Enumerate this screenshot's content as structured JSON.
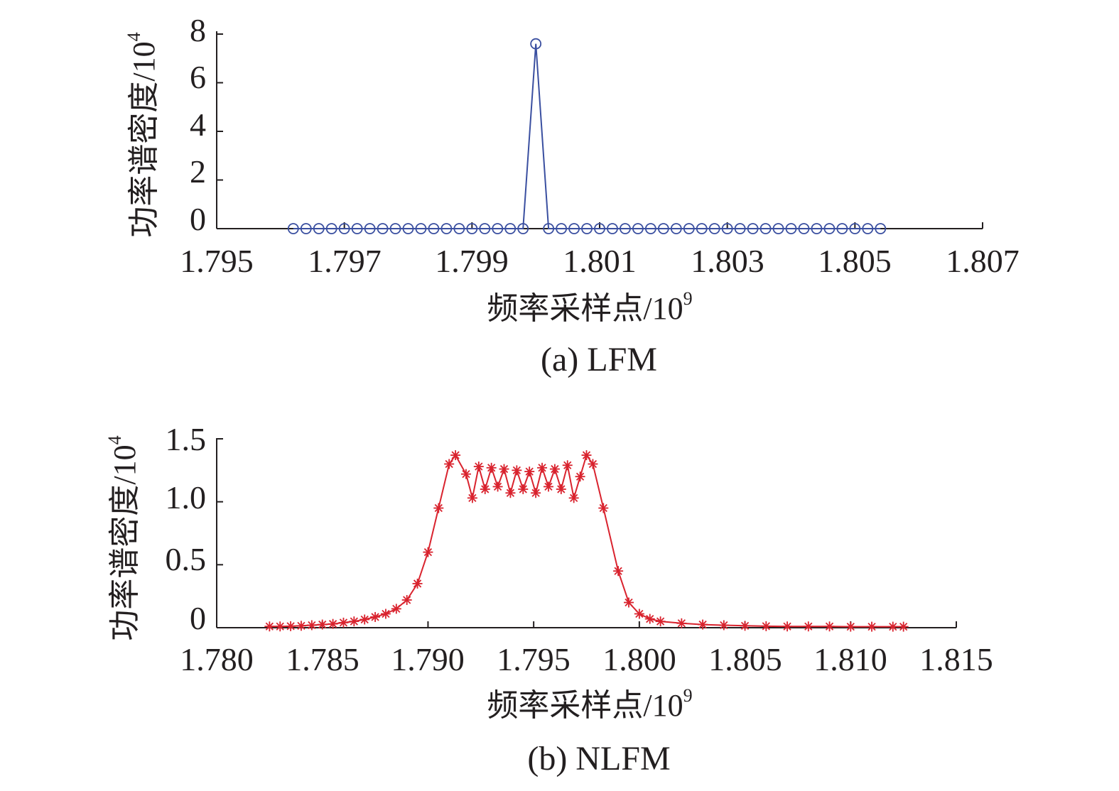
{
  "chart_data": [
    {
      "type": "line",
      "marker": "circle",
      "caption": "(a) LFM",
      "xlabel": "频率采样点/10",
      "xlabel_exponent": "9",
      "ylabel": "功率谱密度/10",
      "ylabel_exponent": "4",
      "xlim": [
        1.795,
        1.807
      ],
      "ylim": [
        0,
        8
      ],
      "xticks": [
        1.795,
        1.797,
        1.799,
        1.801,
        1.803,
        1.805,
        1.807
      ],
      "xtick_labels": [
        "1.795",
        "1.797",
        "1.799",
        "1.801",
        "1.803",
        "1.805",
        "1.807"
      ],
      "yticks": [
        0,
        2,
        4,
        6,
        8
      ],
      "ytick_labels": [
        "0",
        "2",
        "4",
        "6",
        "8"
      ],
      "grid": false,
      "color": "#3a4fa0",
      "series": [
        {
          "x": [
            1.7962,
            1.7964,
            1.7966,
            1.7968,
            1.797,
            1.7972,
            1.7974,
            1.7976,
            1.7978,
            1.798,
            1.7982,
            1.7984,
            1.7986,
            1.7988,
            1.799,
            1.7992,
            1.7994,
            1.7996,
            1.7998,
            1.8,
            1.8002,
            1.8004,
            1.8006,
            1.8008,
            1.801,
            1.8012,
            1.8014,
            1.8016,
            1.8018,
            1.802,
            1.8022,
            1.8024,
            1.8026,
            1.8028,
            1.803,
            1.8032,
            1.8034,
            1.8036,
            1.8038,
            1.804,
            1.8042,
            1.8044,
            1.8046,
            1.8048,
            1.805,
            1.8052,
            1.8054
          ],
          "y": [
            0,
            0,
            0,
            0,
            0,
            0,
            0,
            0,
            0,
            0,
            0,
            0,
            0,
            0,
            0,
            0,
            0,
            0,
            0,
            7.6,
            0,
            0,
            0,
            0,
            0,
            0,
            0,
            0,
            0,
            0,
            0,
            0,
            0,
            0,
            0,
            0,
            0,
            0,
            0,
            0,
            0,
            0,
            0,
            0,
            0,
            0,
            0
          ]
        }
      ]
    },
    {
      "type": "line",
      "marker": "asterisk",
      "caption": "(b) NLFM",
      "xlabel": "频率采样点/10",
      "xlabel_exponent": "9",
      "ylabel": "功率谱密度/10",
      "ylabel_exponent": "4",
      "xlim": [
        1.78,
        1.815
      ],
      "ylim": [
        0,
        1.5
      ],
      "xticks": [
        1.78,
        1.785,
        1.79,
        1.795,
        1.8,
        1.805,
        1.81,
        1.815
      ],
      "xtick_labels": [
        "1.780",
        "1.785",
        "1.790",
        "1.795",
        "1.800",
        "1.805",
        "1.810",
        "1.815"
      ],
      "yticks": [
        0,
        0.5,
        1.0,
        1.5
      ],
      "ytick_labels": [
        "0",
        "0.5",
        "1.0",
        "1.5"
      ],
      "grid": false,
      "color": "#d9232e",
      "series": [
        {
          "x": [
            1.7825,
            1.783,
            1.7835,
            1.784,
            1.7845,
            1.785,
            1.7855,
            1.786,
            1.7865,
            1.787,
            1.7875,
            1.788,
            1.7885,
            1.789,
            1.7895,
            1.79,
            1.7905,
            1.791,
            1.7913,
            1.7918,
            1.7921,
            1.7924,
            1.7927,
            1.793,
            1.7933,
            1.7936,
            1.7939,
            1.7942,
            1.7945,
            1.7948,
            1.7951,
            1.7954,
            1.7957,
            1.796,
            1.7963,
            1.7966,
            1.7969,
            1.7972,
            1.7975,
            1.7978,
            1.7983,
            1.799,
            1.7995,
            1.8,
            1.8005,
            1.801,
            1.802,
            1.803,
            1.804,
            1.805,
            1.806,
            1.807,
            1.808,
            1.809,
            1.81,
            1.811,
            1.812,
            1.8125
          ],
          "y": [
            0.01,
            0.01,
            0.012,
            0.015,
            0.02,
            0.025,
            0.03,
            0.04,
            0.05,
            0.065,
            0.085,
            0.11,
            0.15,
            0.22,
            0.35,
            0.6,
            0.95,
            1.3,
            1.37,
            1.22,
            1.03,
            1.28,
            1.1,
            1.27,
            1.12,
            1.26,
            1.07,
            1.25,
            1.1,
            1.24,
            1.07,
            1.27,
            1.12,
            1.26,
            1.1,
            1.29,
            1.03,
            1.2,
            1.37,
            1.3,
            0.95,
            0.45,
            0.2,
            0.11,
            0.07,
            0.05,
            0.035,
            0.025,
            0.02,
            0.015,
            0.012,
            0.01,
            0.01,
            0.01,
            0.008,
            0.008,
            0.008,
            0.008
          ]
        }
      ]
    }
  ]
}
